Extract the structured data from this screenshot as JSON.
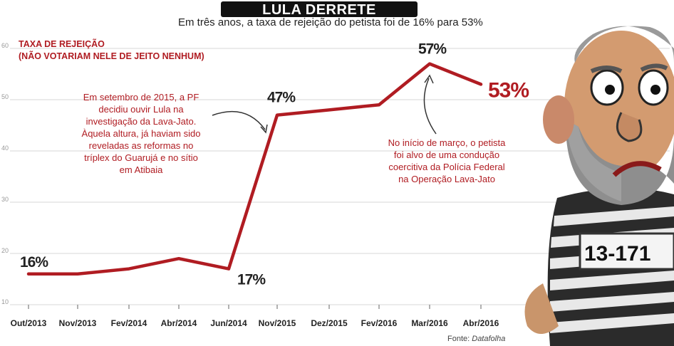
{
  "header": {
    "title": "LULA DERRETE",
    "subtitle": "Em três anos, a taxa de rejeição do petista foi de 16% para 53%"
  },
  "y_axis_label": [
    "TAXA DE REJEIÇÃO",
    "(NÃO VOTARIAM NELE DE JEITO NENHUM)"
  ],
  "annotations": {
    "pf": [
      "Em setembro de 2015, a PF",
      "decidiu ouvir Lula na",
      "investigação da Lava-Jato.",
      "Àquela altura, já haviam sido",
      "reveladas as reformas no",
      "tríplex do Guarujá e no sítio",
      "em Atibaia"
    ],
    "marco": [
      "No início de março, o petista",
      "foi alvo de uma condução",
      "coercitiva da Polícia Federal",
      "na Operação Lava-Jato"
    ]
  },
  "source": {
    "prefix": "Fonte: ",
    "name": "Datafolha"
  },
  "mascot": {
    "sign": "13-171"
  },
  "colors": {
    "line": "#b01c22",
    "accent": "#b01c22",
    "grid": "#d7d7d7",
    "text": "#222222"
  },
  "chart_data": {
    "type": "line",
    "title": "LULA DERRETE",
    "subtitle": "Em três anos, a taxa de rejeição do petista foi de 16% para 53%",
    "ylabel": "TAXA DE REJEIÇÃO (NÃO VOTARIAM NELE DE JEITO NENHUM)",
    "xlabel": "",
    "ylim": [
      10,
      60
    ],
    "yticks": [
      10,
      20,
      30,
      40,
      50,
      60
    ],
    "grid": true,
    "categories": [
      "Out/2013",
      "Nov/2013",
      "Fev/2014",
      "Abr/2014",
      "Jun/2014",
      "Nov/2015",
      "Dez/2015",
      "Fev/2016",
      "Mar/2016",
      "Abr/2016"
    ],
    "series": [
      {
        "name": "Rejeição",
        "values": [
          16,
          16,
          17,
          19,
          17,
          47,
          48,
          49,
          57,
          53
        ]
      }
    ],
    "data_labels": [
      {
        "index": 0,
        "text": "16%"
      },
      {
        "index": 4,
        "text": "17%"
      },
      {
        "index": 5,
        "text": "47%"
      },
      {
        "index": 8,
        "text": "57%"
      },
      {
        "index": 9,
        "text": "53%"
      }
    ]
  }
}
